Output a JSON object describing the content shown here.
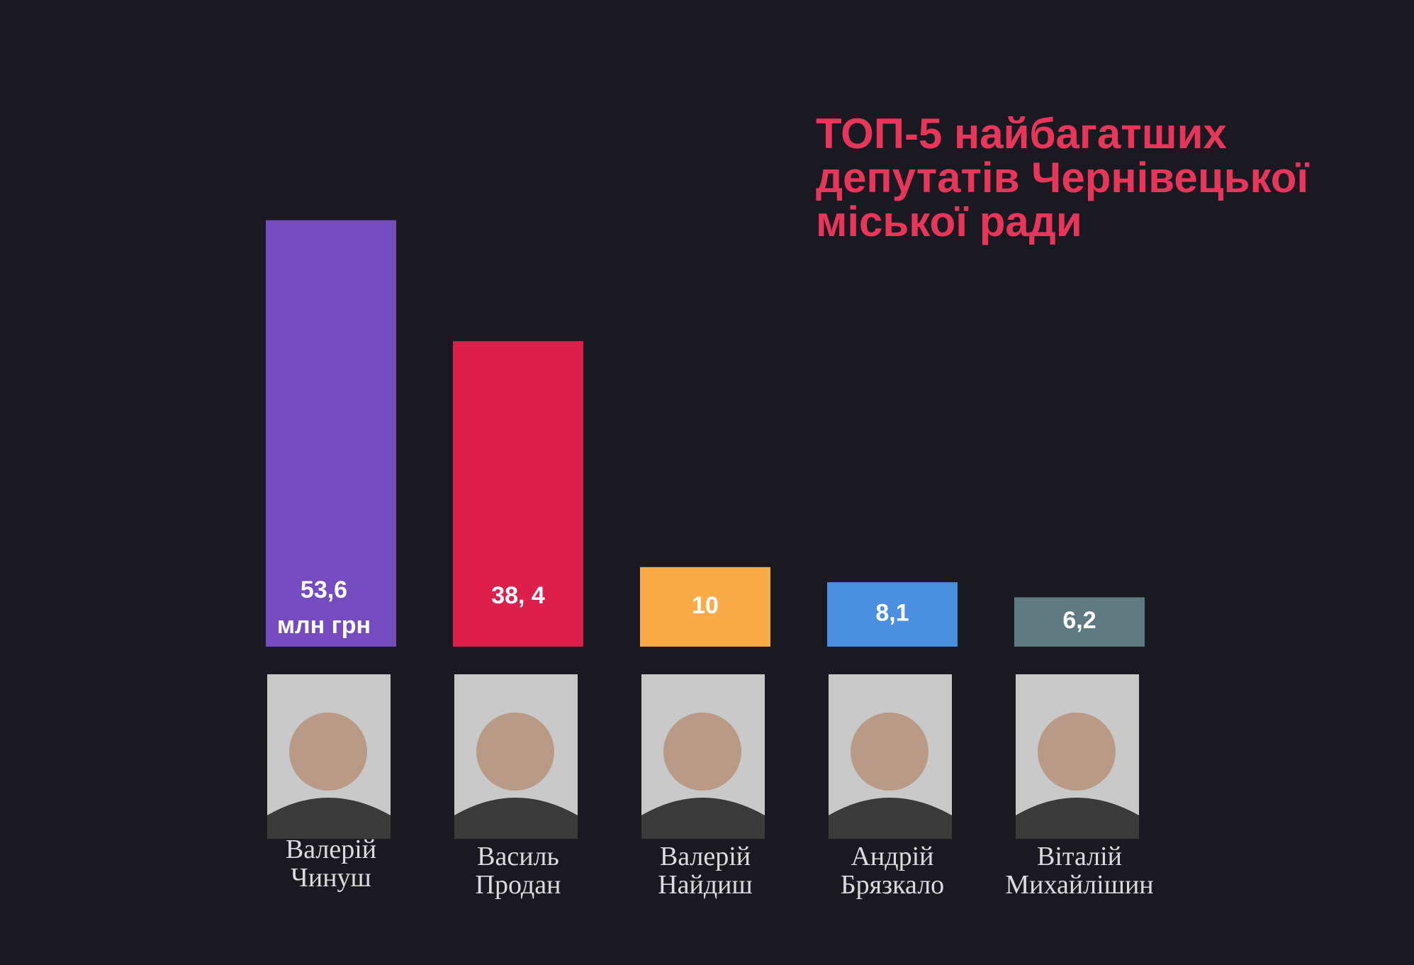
{
  "chart_data": {
    "type": "bar",
    "title": "ТОП-5 найбагатших депутатів Чернівецької міської ради",
    "categories": [
      "Валерій Чинуш",
      "Василь Продан",
      "Валерій Найдиш",
      "Андрій Брязкало",
      "Віталій Михайлішин"
    ],
    "values": [
      53.6,
      38.4,
      10,
      8.1,
      6.2
    ],
    "value_labels": [
      "53,6",
      "38, 4",
      "10",
      "8,1",
      "6,2"
    ],
    "unit": "млн грн",
    "colors": [
      "#744cc0",
      "#dc1f4b",
      "#f9ab47",
      "#4a8fe0",
      "#5f7a80"
    ]
  }
}
